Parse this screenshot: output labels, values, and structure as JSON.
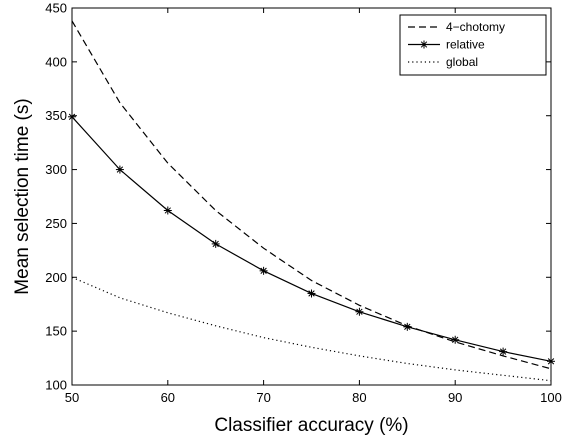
{
  "chart_data": {
    "type": "line",
    "xlabel": "Classifier accuracy (%)",
    "ylabel": "Mean selection time (s)",
    "xlim": [
      50,
      100
    ],
    "ylim": [
      100,
      450
    ],
    "xticks": [
      50,
      60,
      70,
      80,
      90,
      100
    ],
    "yticks": [
      100,
      150,
      200,
      250,
      300,
      350,
      400,
      450
    ],
    "grid": false,
    "legend_position": "top-right",
    "series": [
      {
        "name": "4−chotomy",
        "style": "dashed",
        "marker": "none",
        "x": [
          50,
          55,
          60,
          65,
          70,
          75,
          80,
          85,
          90,
          95,
          100
        ],
        "y": [
          438,
          362,
          306,
          262,
          227,
          197,
          174,
          155,
          140,
          127,
          115
        ]
      },
      {
        "name": "relative",
        "style": "solid",
        "marker": "asterisk",
        "x": [
          50,
          55,
          60,
          65,
          70,
          75,
          80,
          85,
          90,
          95,
          100
        ],
        "y": [
          349,
          300,
          262,
          231,
          206,
          185,
          168,
          154,
          142,
          131,
          122
        ]
      },
      {
        "name": "global",
        "style": "dotted",
        "marker": "none",
        "x": [
          50,
          55,
          60,
          65,
          70,
          75,
          80,
          85,
          90,
          95,
          100
        ],
        "y": [
          200,
          181,
          167,
          155,
          144,
          135,
          127,
          120,
          114,
          109,
          104
        ]
      }
    ]
  }
}
